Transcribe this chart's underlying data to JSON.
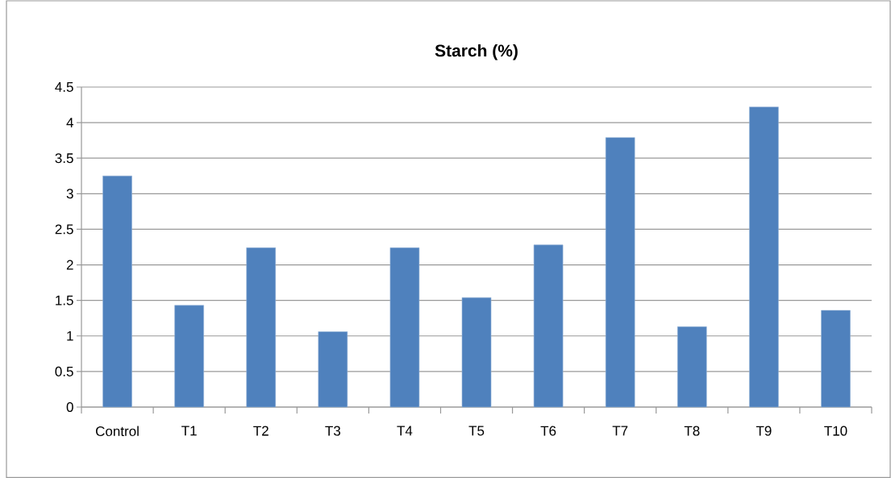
{
  "chart_data": {
    "type": "bar",
    "title": "**Starch (%)**",
    "categories": [
      "Control",
      "T1",
      "T2",
      "T3",
      "T4",
      "T5",
      "T6",
      "T7",
      "T8",
      "T9",
      "T10"
    ],
    "values": [
      3.25,
      1.43,
      2.24,
      1.06,
      2.24,
      1.54,
      2.28,
      3.79,
      1.13,
      4.22,
      1.36
    ],
    "color": "#4f81bd",
    "ylim": [
      0,
      4.5
    ],
    "yticks": [
      0,
      0.5,
      1,
      1.5,
      2,
      2.5,
      3,
      3.5,
      4,
      4.5
    ],
    "grid": "y"
  }
}
